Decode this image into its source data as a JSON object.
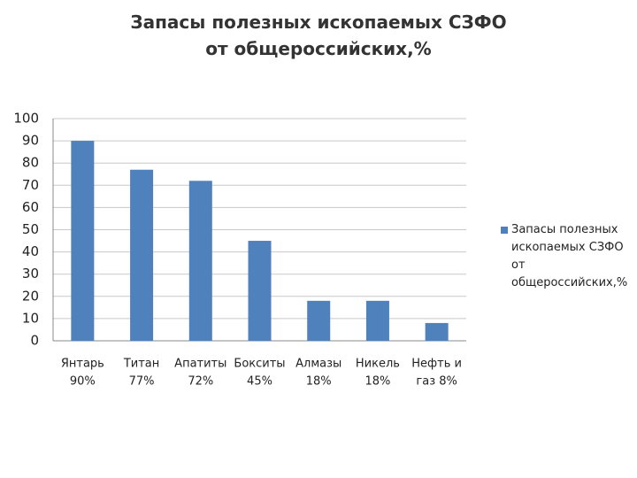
{
  "chart_data": {
    "type": "bar",
    "title": "Запасы полезных ископаемых СЗФО от общероссийских,%",
    "categories": [
      [
        "Янтарь",
        "90%"
      ],
      [
        "Титан",
        "77%"
      ],
      [
        "Апатиты",
        "72%"
      ],
      [
        "Бокситы",
        "45%"
      ],
      [
        "Алмазы",
        "18%"
      ],
      [
        "Никель",
        "18%"
      ],
      [
        "Нефть и",
        "газ 8%"
      ]
    ],
    "series": [
      {
        "name": "Запасы полезных ископаемых СЗФО от общероссийских,%",
        "color": "#4f81bd",
        "values": [
          90,
          77,
          72,
          45,
          18,
          18,
          8
        ]
      }
    ],
    "ylim": [
      0,
      100
    ],
    "yticks": [
      0,
      10,
      20,
      30,
      40,
      50,
      60,
      70,
      80,
      90,
      100
    ],
    "grid": true,
    "legend": "right"
  }
}
